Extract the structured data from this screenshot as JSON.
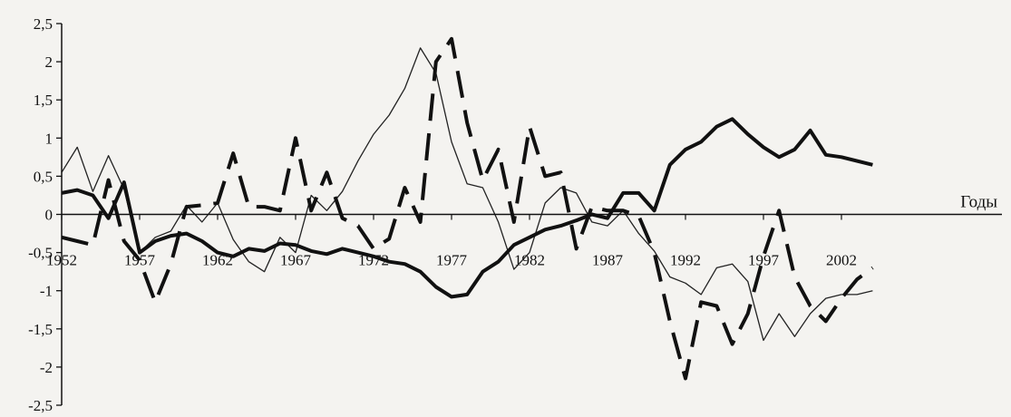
{
  "chart_data": {
    "type": "line",
    "title": "",
    "xlabel": "Годы",
    "ylabel": "",
    "ylim": [
      -2.5,
      2.5
    ],
    "xlim": [
      1952,
      2005
    ],
    "grid": false,
    "yticks": [
      "2,5",
      "2",
      "1,5",
      "1",
      "0,5",
      "0",
      "-0,5",
      "-1",
      "-1,5",
      "-2",
      "-2,5"
    ],
    "ytick_values": [
      2.5,
      2,
      1.5,
      1,
      0.5,
      0,
      -0.5,
      -1,
      -1.5,
      -2,
      -2.5
    ],
    "xticks": [
      "1952",
      "1957",
      "1962",
      "1967",
      "1972",
      "1977",
      "1982",
      "1987",
      "1992",
      "1997",
      "2002"
    ],
    "xtick_values": [
      1952,
      1957,
      1962,
      1967,
      1972,
      1977,
      1982,
      1987,
      1992,
      1997,
      2002
    ],
    "x": [
      1952,
      1953,
      1954,
      1955,
      1956,
      1957,
      1958,
      1959,
      1960,
      1961,
      1962,
      1963,
      1964,
      1965,
      1966,
      1967,
      1968,
      1969,
      1970,
      1971,
      1972,
      1973,
      1974,
      1975,
      1976,
      1977,
      1978,
      1979,
      1980,
      1981,
      1982,
      1983,
      1984,
      1985,
      1986,
      1987,
      1988,
      1989,
      1990,
      1991,
      1992,
      1993,
      1994,
      1995,
      1996,
      1997,
      1998,
      1999,
      2000,
      2001,
      2002,
      2003,
      2004
    ],
    "series": [
      {
        "style": "thin",
        "values": [
          0.55,
          0.88,
          0.3,
          0.77,
          0.33,
          -0.5,
          -0.3,
          -0.22,
          0.12,
          -0.1,
          0.15,
          -0.33,
          -0.62,
          -0.75,
          -0.3,
          -0.5,
          0.25,
          0.05,
          0.3,
          0.7,
          1.05,
          1.3,
          1.65,
          2.18,
          1.85,
          0.95,
          0.4,
          0.35,
          -0.1,
          -0.72,
          -0.5,
          0.15,
          0.35,
          0.28,
          -0.1,
          -0.15,
          0.05,
          -0.25,
          -0.48,
          -0.82,
          -0.9,
          -1.05,
          -0.7,
          -0.65,
          -0.88,
          -1.65,
          -1.3,
          -1.6,
          -1.3,
          -1.1,
          -1.05,
          -1.05,
          -1.0
        ]
      },
      {
        "style": "thick",
        "values": [
          0.28,
          0.32,
          0.25,
          -0.05,
          0.42,
          -0.5,
          -0.35,
          -0.28,
          -0.25,
          -0.35,
          -0.5,
          -0.55,
          -0.45,
          -0.48,
          -0.38,
          -0.4,
          -0.48,
          -0.52,
          -0.45,
          -0.5,
          -0.55,
          -0.62,
          -0.65,
          -0.75,
          -0.95,
          -1.08,
          -1.05,
          -0.75,
          -0.62,
          -0.4,
          -0.3,
          -0.2,
          -0.15,
          -0.08,
          0.0,
          -0.05,
          0.28,
          0.28,
          0.05,
          0.65,
          0.85,
          0.95,
          1.15,
          1.25,
          1.05,
          0.88,
          0.75,
          0.85,
          1.1,
          0.78,
          0.75,
          0.7,
          0.65
        ]
      },
      {
        "style": "dashed",
        "values": [
          -0.3,
          -0.35,
          -0.4,
          0.45,
          -0.35,
          -0.6,
          -1.15,
          -0.65,
          0.1,
          0.12,
          0.15,
          0.8,
          0.1,
          0.1,
          0.05,
          1.0,
          0.05,
          0.55,
          -0.05,
          -0.15,
          -0.45,
          -0.32,
          0.35,
          -0.1,
          2.0,
          2.3,
          1.2,
          0.45,
          0.85,
          -0.1,
          1.15,
          0.5,
          0.55,
          -0.45,
          0.1,
          0.05,
          0.05,
          -0.02,
          -0.5,
          -1.4,
          -2.15,
          -1.15,
          -1.2,
          -1.7,
          -1.3,
          -0.55,
          0.05,
          -0.82,
          -1.2,
          -1.4,
          -1.1,
          -0.85,
          -0.7
        ]
      }
    ]
  }
}
